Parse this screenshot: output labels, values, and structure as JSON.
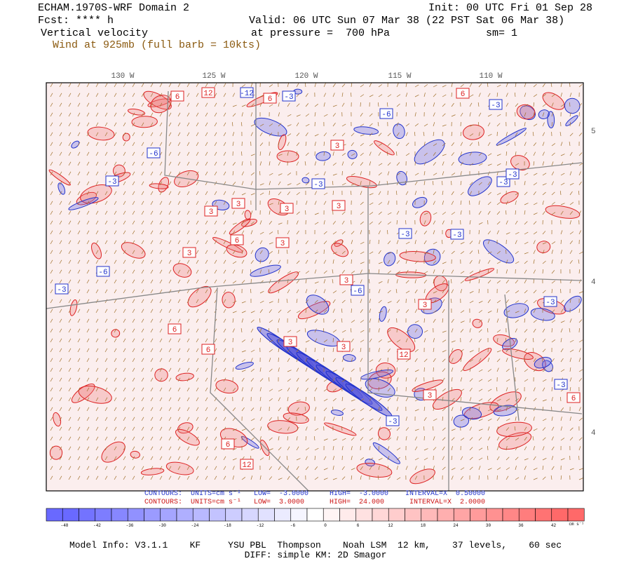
{
  "header": {
    "model": "ECHAM.1970S-WRF Domain 2",
    "init": "Init: 00 UTC Fri 01 Sep 28",
    "fcst": "Fcst: **** h",
    "valid": "Valid: 06 UTC Sun 07 Mar 38 (22 PST Sat 06 Mar 38)",
    "field": "Vertical velocity",
    "pressure": "at pressure =  700 hPa",
    "smooth": "sm= 1",
    "wind": "Wind at 925mb (full barb = 10kts)"
  },
  "map": {
    "lon_labels": [
      "130 W",
      "125 W",
      "120 W",
      "115 W",
      "110 W"
    ],
    "lat_labels": [
      "5",
      "4",
      "4"
    ],
    "contour_labels": [
      "6",
      "12",
      "-12",
      "6",
      "-3",
      "-6",
      "-3",
      "-6",
      "-3",
      "3",
      "-3",
      "-3",
      "3",
      "3",
      "6",
      "3",
      "-3",
      "3",
      "6",
      "-6",
      "3",
      "-3",
      "6",
      "3",
      "-3",
      "12",
      "3",
      "-3",
      "6",
      "3",
      "-3",
      "6",
      "12",
      "-3",
      "3",
      "-6",
      "3",
      "6",
      "-3",
      "3"
    ]
  },
  "contours": {
    "blue": "CONTOURS:  UNITS=cm s⁻¹   LOW=  -3.0000     HIGH=  -3.0000    INTERVAL=X  0.50000",
    "red": "CONTOURS:  UNITS=cm s⁻¹   LOW=  3.0000      HIGH=  24.000      INTERVAL=X  2.0000"
  },
  "colorbar": {
    "labels": [
      -48,
      -42,
      -36,
      -30,
      -24,
      -18,
      -12,
      -6,
      0,
      6,
      12,
      18,
      24,
      30,
      36,
      42
    ],
    "units": "cm s⁻¹"
  },
  "footer": {
    "model_info": "Model Info: V3.1.1    KF     YSU PBL  Thompson    Noah LSM  12 km,    37 levels,    60 sec",
    "diff": "DIFF: simple KM: 2D Smagor"
  }
}
